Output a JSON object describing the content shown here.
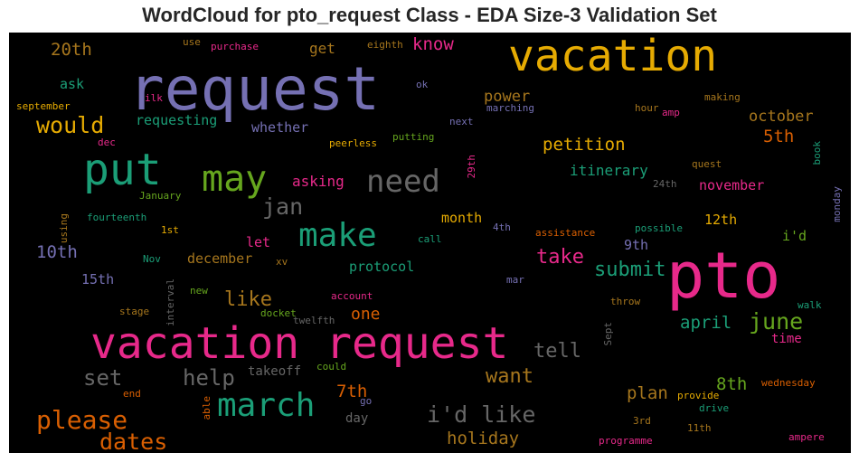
{
  "chart_data": {
    "type": "wordcloud",
    "title": "WordCloud for pto_request Class - EDA Size-3 Validation Set",
    "colors": {
      "purple": "#7570b3",
      "teal": "#1b9e77",
      "orange": "#d95f02",
      "pink": "#e7298a",
      "green": "#66a61e",
      "yellow": "#e6ab02",
      "brown": "#a6761d",
      "gray": "#666666"
    },
    "words": [
      {
        "text": "request",
        "color": "purple"
      },
      {
        "text": "vacation",
        "color": "yellow"
      },
      {
        "text": "pto",
        "color": "pink"
      },
      {
        "text": "vacation request",
        "color": "pink"
      },
      {
        "text": "put",
        "color": "teal"
      },
      {
        "text": "may",
        "color": "green"
      },
      {
        "text": "need",
        "color": "gray"
      },
      {
        "text": "make",
        "color": "teal"
      },
      {
        "text": "march",
        "color": "teal"
      },
      {
        "text": "would",
        "color": "yellow"
      },
      {
        "text": "jan",
        "color": "gray"
      },
      {
        "text": "please",
        "color": "orange"
      },
      {
        "text": "dates",
        "color": "orange"
      },
      {
        "text": "i'd like",
        "color": "gray"
      },
      {
        "text": "june",
        "color": "green"
      },
      {
        "text": "submit",
        "color": "teal"
      },
      {
        "text": "take",
        "color": "pink"
      },
      {
        "text": "tell",
        "color": "gray"
      },
      {
        "text": "help",
        "color": "gray"
      },
      {
        "text": "set",
        "color": "gray"
      },
      {
        "text": "like",
        "color": "brown"
      },
      {
        "text": "want",
        "color": "brown"
      },
      {
        "text": "petition",
        "color": "yellow"
      },
      {
        "text": "know",
        "color": "pink"
      },
      {
        "text": "20th",
        "color": "brown"
      },
      {
        "text": "10th",
        "color": "purple"
      },
      {
        "text": "7th",
        "color": "orange"
      },
      {
        "text": "8th",
        "color": "green"
      },
      {
        "text": "5th",
        "color": "orange"
      },
      {
        "text": "april",
        "color": "teal"
      },
      {
        "text": "plan",
        "color": "brown"
      },
      {
        "text": "holiday",
        "color": "brown"
      },
      {
        "text": "october",
        "color": "brown"
      },
      {
        "text": "one",
        "color": "orange"
      },
      {
        "text": "power",
        "color": "brown"
      },
      {
        "text": "itinerary",
        "color": "teal"
      },
      {
        "text": "asking",
        "color": "pink"
      },
      {
        "text": "requesting",
        "color": "teal"
      },
      {
        "text": "whether",
        "color": "purple"
      },
      {
        "text": "protocol",
        "color": "teal"
      },
      {
        "text": "december",
        "color": "brown"
      },
      {
        "text": "november",
        "color": "pink"
      },
      {
        "text": "month",
        "color": "yellow"
      },
      {
        "text": "12th",
        "color": "yellow"
      },
      {
        "text": "9th",
        "color": "purple"
      },
      {
        "text": "15th",
        "color": "purple"
      },
      {
        "text": "let",
        "color": "pink"
      },
      {
        "text": "day",
        "color": "gray"
      },
      {
        "text": "get",
        "color": "brown"
      },
      {
        "text": "ask",
        "color": "teal"
      },
      {
        "text": "takeoff",
        "color": "gray"
      },
      {
        "text": "i'd",
        "color": "green"
      },
      {
        "text": "time",
        "color": "pink"
      },
      {
        "text": "purchase",
        "color": "pink"
      },
      {
        "text": "use",
        "color": "brown"
      },
      {
        "text": "eighth",
        "color": "brown"
      },
      {
        "text": "ok",
        "color": "purple"
      },
      {
        "text": "september",
        "color": "yellow"
      },
      {
        "text": "ilk",
        "color": "pink"
      },
      {
        "text": "marching",
        "color": "purple"
      },
      {
        "text": "next",
        "color": "purple"
      },
      {
        "text": "making",
        "color": "brown"
      },
      {
        "text": "hour",
        "color": "brown"
      },
      {
        "text": "amp",
        "color": "pink"
      },
      {
        "text": "dec",
        "color": "pink"
      },
      {
        "text": "peerless",
        "color": "yellow"
      },
      {
        "text": "putting",
        "color": "green"
      },
      {
        "text": "29th",
        "color": "pink"
      },
      {
        "text": "book",
        "color": "teal"
      },
      {
        "text": "quest",
        "color": "brown"
      },
      {
        "text": "24th",
        "color": "gray"
      },
      {
        "text": "monday",
        "color": "purple"
      },
      {
        "text": "January",
        "color": "green"
      },
      {
        "text": "fourteenth",
        "color": "teal"
      },
      {
        "text": "using",
        "color": "brown"
      },
      {
        "text": "1st",
        "color": "yellow"
      },
      {
        "text": "4th",
        "color": "purple"
      },
      {
        "text": "assistance",
        "color": "orange"
      },
      {
        "text": "possible",
        "color": "teal"
      },
      {
        "text": "call",
        "color": "teal"
      },
      {
        "text": "Nov",
        "color": "teal"
      },
      {
        "text": "xv",
        "color": "brown"
      },
      {
        "text": "interval",
        "color": "gray"
      },
      {
        "text": "new",
        "color": "green"
      },
      {
        "text": "mar",
        "color": "purple"
      },
      {
        "text": "account",
        "color": "pink"
      },
      {
        "text": "stage",
        "color": "brown"
      },
      {
        "text": "docket",
        "color": "green"
      },
      {
        "text": "twelfth",
        "color": "gray"
      },
      {
        "text": "throw",
        "color": "brown"
      },
      {
        "text": "walk",
        "color": "teal"
      },
      {
        "text": "Sept",
        "color": "gray"
      },
      {
        "text": "could",
        "color": "green"
      },
      {
        "text": "end",
        "color": "orange"
      },
      {
        "text": "able",
        "color": "orange"
      },
      {
        "text": "go",
        "color": "purple"
      },
      {
        "text": "provide",
        "color": "yellow"
      },
      {
        "text": "drive",
        "color": "teal"
      },
      {
        "text": "wednesday",
        "color": "orange"
      },
      {
        "text": "3rd",
        "color": "brown"
      },
      {
        "text": "11th",
        "color": "brown"
      },
      {
        "text": "programme",
        "color": "pink"
      },
      {
        "text": "ampere",
        "color": "pink"
      }
    ]
  }
}
